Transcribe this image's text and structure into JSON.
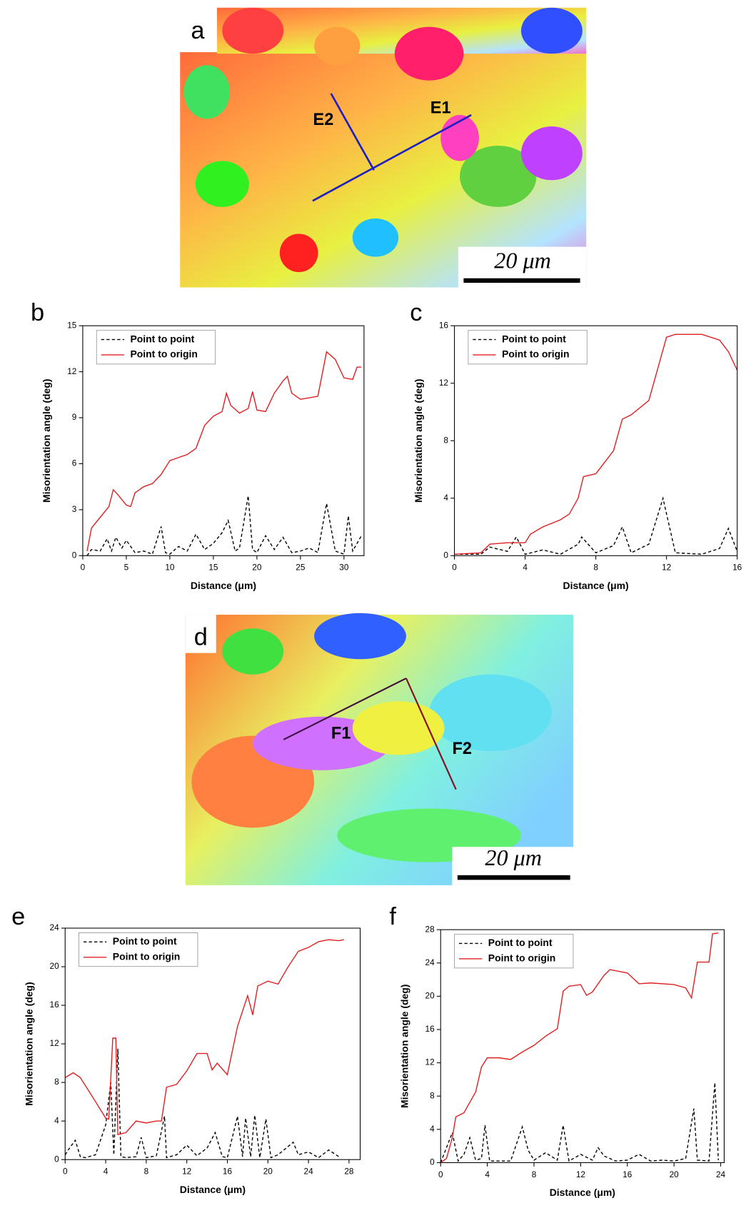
{
  "maps": [
    {
      "label": "a",
      "lines": [
        "E1",
        "E2"
      ],
      "scale_bar": "20 μm"
    },
    {
      "label": "d",
      "lines": [
        "F1",
        "F2"
      ],
      "scale_bar": "20 μm"
    }
  ],
  "chart_data": [
    {
      "type": "line",
      "panel": "b",
      "xlabel": "Distance (μm)",
      "ylabel": "Misorientation angle (deg)",
      "legend": "upper left",
      "xlim": [
        0,
        32.3
      ],
      "xticks": [
        0,
        5,
        10,
        15,
        20,
        25,
        30
      ],
      "ylim": [
        0,
        15
      ],
      "yticks": [
        0,
        3,
        6,
        9,
        12,
        15
      ],
      "series": [
        {
          "name": "Point to point",
          "color": "#000000",
          "linestyle": "dashed",
          "x": [
            0.5,
            1,
            2,
            2.8,
            3.3,
            3.8,
            4.5,
            5,
            6,
            7,
            8,
            9,
            9.5,
            10,
            11,
            12,
            13,
            14,
            15,
            16,
            16.7,
            17.5,
            18,
            19,
            19.5,
            20,
            21,
            22,
            23,
            24,
            25,
            26,
            27,
            28,
            29,
            30,
            30.5,
            31,
            32
          ],
          "values": [
            0,
            0.4,
            0.3,
            1.1,
            0.3,
            1.2,
            0.5,
            1,
            0.2,
            0.3,
            0.1,
            1.9,
            0.2,
            0.1,
            0.6,
            0.3,
            1.4,
            0.4,
            0.8,
            1.5,
            2.3,
            0.3,
            0.5,
            3.9,
            0.4,
            0.2,
            1.3,
            0.4,
            1.2,
            0.2,
            0.3,
            0.5,
            0.2,
            3.4,
            0.3,
            0.1,
            2.6,
            0.3,
            1.3
          ]
        },
        {
          "name": "Point to origin",
          "color": "#e02020",
          "linestyle": "solid",
          "x": [
            0.5,
            1,
            2,
            3,
            3.5,
            4,
            5,
            5.5,
            6,
            7,
            8,
            9,
            10,
            11,
            12,
            13,
            14,
            15,
            16,
            16.5,
            17,
            18,
            19,
            19.5,
            20,
            21,
            22,
            23,
            23.5,
            24,
            25,
            26,
            27,
            28,
            29,
            30,
            31,
            31.5,
            32
          ],
          "values": [
            0.3,
            1.8,
            2.5,
            3.2,
            4.3,
            4,
            3.3,
            3.2,
            4.1,
            4.5,
            4.7,
            5.3,
            6.2,
            6.4,
            6.6,
            7,
            8.5,
            9.1,
            9.4,
            10.6,
            9.8,
            9.3,
            9.6,
            10.7,
            9.5,
            9.4,
            10.6,
            11.4,
            11.7,
            10.6,
            10.2,
            10.3,
            10.4,
            13.3,
            12.8,
            11.6,
            11.5,
            12.3,
            12.3
          ]
        }
      ]
    },
    {
      "type": "line",
      "panel": "c",
      "xlabel": "Distance (μm)",
      "ylabel": "Misorientation angle (deg)",
      "legend": "upper left",
      "xlim": [
        0,
        16
      ],
      "xticks": [
        0,
        4,
        8,
        12,
        16
      ],
      "ylim": [
        0,
        16
      ],
      "yticks": [
        0,
        4,
        8,
        12,
        16
      ],
      "series": [
        {
          "name": "Point to point",
          "color": "#000000",
          "linestyle": "dashed",
          "x": [
            0,
            1.5,
            2,
            3,
            3.5,
            4,
            5,
            6,
            7,
            7.2,
            8,
            9,
            9.5,
            10,
            11,
            11.8,
            12.5,
            14,
            15,
            15.5,
            16
          ],
          "values": [
            0.1,
            0.1,
            0.6,
            0.3,
            1.3,
            0.1,
            0.4,
            0.1,
            0.8,
            1.3,
            0.2,
            0.7,
            2,
            0.2,
            0.8,
            4,
            0.2,
            0.1,
            0.5,
            1.9,
            0.3
          ]
        },
        {
          "name": "Point to origin",
          "color": "#e02020",
          "linestyle": "solid",
          "x": [
            0,
            1.5,
            2,
            3,
            4,
            4.3,
            5,
            6,
            6.5,
            7,
            7.3,
            8,
            9,
            9.5,
            10,
            11,
            12,
            12.5,
            14,
            15,
            15.5,
            16
          ],
          "values": [
            0.1,
            0.2,
            0.8,
            0.9,
            0.9,
            1.5,
            2,
            2.5,
            2.9,
            4,
            5.5,
            5.7,
            7.3,
            9.5,
            9.8,
            10.8,
            15.2,
            15.4,
            15.4,
            15,
            14.2,
            12.9
          ]
        }
      ]
    },
    {
      "type": "line",
      "panel": "e",
      "xlabel": "Distance (μm)",
      "ylabel": "Misorientation angle (deg)",
      "legend": "upper left",
      "xlim": [
        0,
        29.1
      ],
      "xticks": [
        0,
        4,
        8,
        12,
        16,
        20,
        24,
        28
      ],
      "ylim": [
        0,
        24
      ],
      "yticks": [
        0,
        4,
        8,
        12,
        16,
        20,
        24
      ],
      "series": [
        {
          "name": "Point to point",
          "color": "#000000",
          "linestyle": "dashed",
          "x": [
            0,
            0.5,
            1,
            1.5,
            2,
            3,
            4,
            4.5,
            4.8,
            5.2,
            5.5,
            6,
            7,
            7.5,
            8,
            9,
            9.8,
            10,
            11,
            12,
            13,
            14,
            14.8,
            15.5,
            16,
            17,
            17.5,
            17.8,
            18.3,
            18.7,
            19.2,
            19.8,
            20.3,
            21,
            22.5,
            23,
            24,
            25,
            26,
            27
          ],
          "values": [
            0.5,
            1.3,
            2,
            0.3,
            0.2,
            0.5,
            3.6,
            8,
            0.5,
            11.5,
            0.3,
            0.2,
            0.3,
            2.3,
            0.2,
            0.4,
            4.5,
            0.2,
            0.5,
            1.5,
            0.4,
            1.2,
            2.8,
            0.3,
            0.2,
            4.5,
            0.3,
            4.3,
            0.3,
            4.6,
            0.2,
            4.2,
            0.2,
            0.5,
            1.8,
            0.5,
            0.8,
            0.2,
            1,
            0.3
          ]
        },
        {
          "name": "Point to origin",
          "color": "#e02020",
          "linestyle": "solid",
          "x": [
            0,
            0.8,
            1.5,
            3,
            4,
            4.3,
            4.7,
            5,
            5.2,
            6,
            7,
            8,
            9,
            9.5,
            10,
            11,
            12,
            13,
            14,
            14.5,
            15,
            16,
            17,
            18,
            18.5,
            19,
            20,
            21,
            22,
            23,
            24,
            25,
            26,
            27,
            27.5
          ],
          "values": [
            8.5,
            9,
            8.5,
            6,
            4.3,
            4.2,
            12.6,
            12.6,
            2.6,
            2.8,
            4,
            3.8,
            4,
            4,
            7.5,
            7.8,
            9.2,
            11,
            11,
            9.3,
            10,
            8.8,
            13.8,
            17,
            15,
            18,
            18.5,
            18.2,
            20,
            21.6,
            22,
            22.6,
            22.8,
            22.7,
            22.8
          ]
        }
      ]
    },
    {
      "type": "line",
      "panel": "f",
      "xlabel": "Distance (μm)",
      "ylabel": "Misorientation angle (deg)",
      "legend": "upper left",
      "xlim": [
        0,
        24.3
      ],
      "xticks": [
        0,
        4,
        8,
        12,
        16,
        20,
        24
      ],
      "ylim": [
        0,
        28
      ],
      "yticks": [
        0,
        4,
        8,
        12,
        16,
        20,
        24,
        28
      ],
      "series": [
        {
          "name": "Point to point",
          "color": "#000000",
          "linestyle": "dashed",
          "x": [
            0,
            1,
            1.5,
            2,
            2.5,
            3,
            3.5,
            3.8,
            4.2,
            5,
            6,
            7,
            7.5,
            8,
            9,
            10,
            10.5,
            11,
            12,
            13,
            13.5,
            14,
            15,
            16,
            17,
            18,
            19,
            20,
            21,
            21.7,
            22,
            23,
            23.5,
            23.8
          ],
          "values": [
            0,
            3.6,
            0.2,
            1,
            3,
            0.3,
            0.5,
            4.5,
            0.2,
            0.2,
            0.2,
            4.3,
            1.5,
            0.3,
            1.2,
            0.3,
            4.5,
            0.2,
            1,
            0.3,
            1.8,
            0.8,
            0.2,
            0.3,
            1,
            0.2,
            0.3,
            0.2,
            0.5,
            6.5,
            0.3,
            0.2,
            9.6,
            0.3
          ]
        },
        {
          "name": "Point to origin",
          "color": "#e02020",
          "linestyle": "solid",
          "x": [
            0,
            0.5,
            1,
            1.3,
            2,
            3,
            3.5,
            4,
            5,
            6,
            7,
            8,
            9,
            10,
            10.5,
            11,
            12,
            12.5,
            13,
            14,
            14.5,
            16,
            17,
            18,
            20,
            21,
            21.5,
            22,
            23,
            23.3,
            23.8
          ],
          "values": [
            0,
            0.5,
            3,
            5.5,
            6,
            8.5,
            11.5,
            12.6,
            12.6,
            12.4,
            13.3,
            14.1,
            15.2,
            16.1,
            20.6,
            21.2,
            21.4,
            20.1,
            20.5,
            22.5,
            23.2,
            22.8,
            21.5,
            21.6,
            21.4,
            21,
            19.8,
            24.1,
            24.1,
            27.5,
            27.6
          ]
        }
      ]
    }
  ]
}
